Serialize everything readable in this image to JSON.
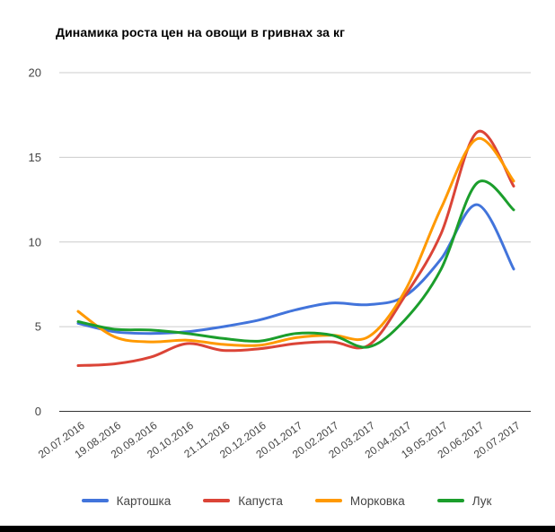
{
  "page": {
    "background_color": "#ffffff",
    "bottom_bar_color": "#000000"
  },
  "chart_data": {
    "type": "line",
    "curve": "smooth",
    "title": "Динамика роста цен на овощи в гривнах за кг",
    "xlabel": "",
    "ylabel": "",
    "ylim": [
      0,
      20
    ],
    "y_ticks": [
      0,
      5,
      10,
      15,
      20
    ],
    "grid": true,
    "gridline_color": "#cccccc",
    "baseline_color": "#333333",
    "axis_label_color": "#444444",
    "legend_position": "bottom",
    "x_labels": [
      "20.07.2016",
      "19.08.2016",
      "20.09.2016",
      "20.10.2016",
      "21.11.2016",
      "20.12.2016",
      "20.01.2017",
      "20.02.2017",
      "20.03.2017",
      "20.04.2017",
      "19.05.2017",
      "20.06.2017",
      "20.07.2017"
    ],
    "series": [
      {
        "name": "Картошка",
        "color": "#4274DB",
        "values": [
          5.2,
          4.7,
          4.6,
          4.7,
          5.0,
          5.4,
          6.0,
          6.4,
          6.3,
          6.8,
          9.0,
          12.2,
          8.4
        ]
      },
      {
        "name": "Капуста",
        "color": "#DB4437",
        "values": [
          2.7,
          2.8,
          3.2,
          4.0,
          3.6,
          3.7,
          4.0,
          4.1,
          3.9,
          6.8,
          10.5,
          16.5,
          13.3
        ]
      },
      {
        "name": "Морковка",
        "color": "#FF9900",
        "values": [
          5.9,
          4.4,
          4.1,
          4.2,
          3.95,
          3.9,
          4.35,
          4.5,
          4.4,
          7.1,
          12.0,
          16.1,
          13.6
        ]
      },
      {
        "name": "Лук",
        "color": "#1B9E2C",
        "values": [
          5.3,
          4.85,
          4.8,
          4.6,
          4.3,
          4.15,
          4.6,
          4.5,
          3.8,
          5.4,
          8.4,
          13.5,
          11.9
        ]
      }
    ]
  }
}
